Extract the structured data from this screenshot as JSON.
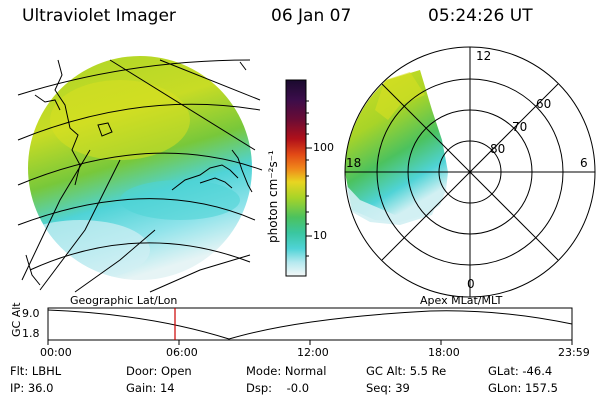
{
  "header": {
    "instrument": "Ultraviolet Imager",
    "date": "06 Jan 07",
    "time": "05:24:26 UT"
  },
  "colorbar": {
    "unit_label": "photon cm⁻²s⁻¹",
    "ticks": [
      "100",
      "10"
    ],
    "colors": [
      "#1a0a2e",
      "#3b0d4a",
      "#5a0c3f",
      "#8a0d1f",
      "#c0111a",
      "#e24a16",
      "#f0851a",
      "#f5b71f",
      "#d9e021",
      "#a8d428",
      "#78c83a",
      "#4cc25e",
      "#3ac6a0",
      "#4fd3d6",
      "#8fe3ea",
      "#d2f0f3",
      "#f4f8f8"
    ]
  },
  "polar": {
    "lat_labels": [
      "60",
      "70",
      "80"
    ],
    "mlt_labels": {
      "top": "12",
      "left": "18",
      "right": "6",
      "bottom": "0"
    }
  },
  "timeline": {
    "ylabel": "GC Alt",
    "yticks": [
      "9.0",
      "1.8"
    ],
    "left_caption": "Geographic Lat/Lon",
    "right_caption": "Apex MLat/MLT",
    "xticks": [
      "00:00",
      "06:00",
      "12:00",
      "18:00",
      "23:59"
    ],
    "marker_color": "#cc0000"
  },
  "footer": {
    "filter": "Flt: LBHL",
    "ip": "IP: 36.0",
    "door": "Door: Open",
    "gain": "Gain: 14",
    "mode": "Mode: Normal",
    "dsp": "Dsp:    -0.0",
    "gcalt": "GC Alt: 5.5 Re",
    "seq": "Seq: 39",
    "glat": "GLat: -46.4",
    "glon": "GLon: 157.5"
  }
}
